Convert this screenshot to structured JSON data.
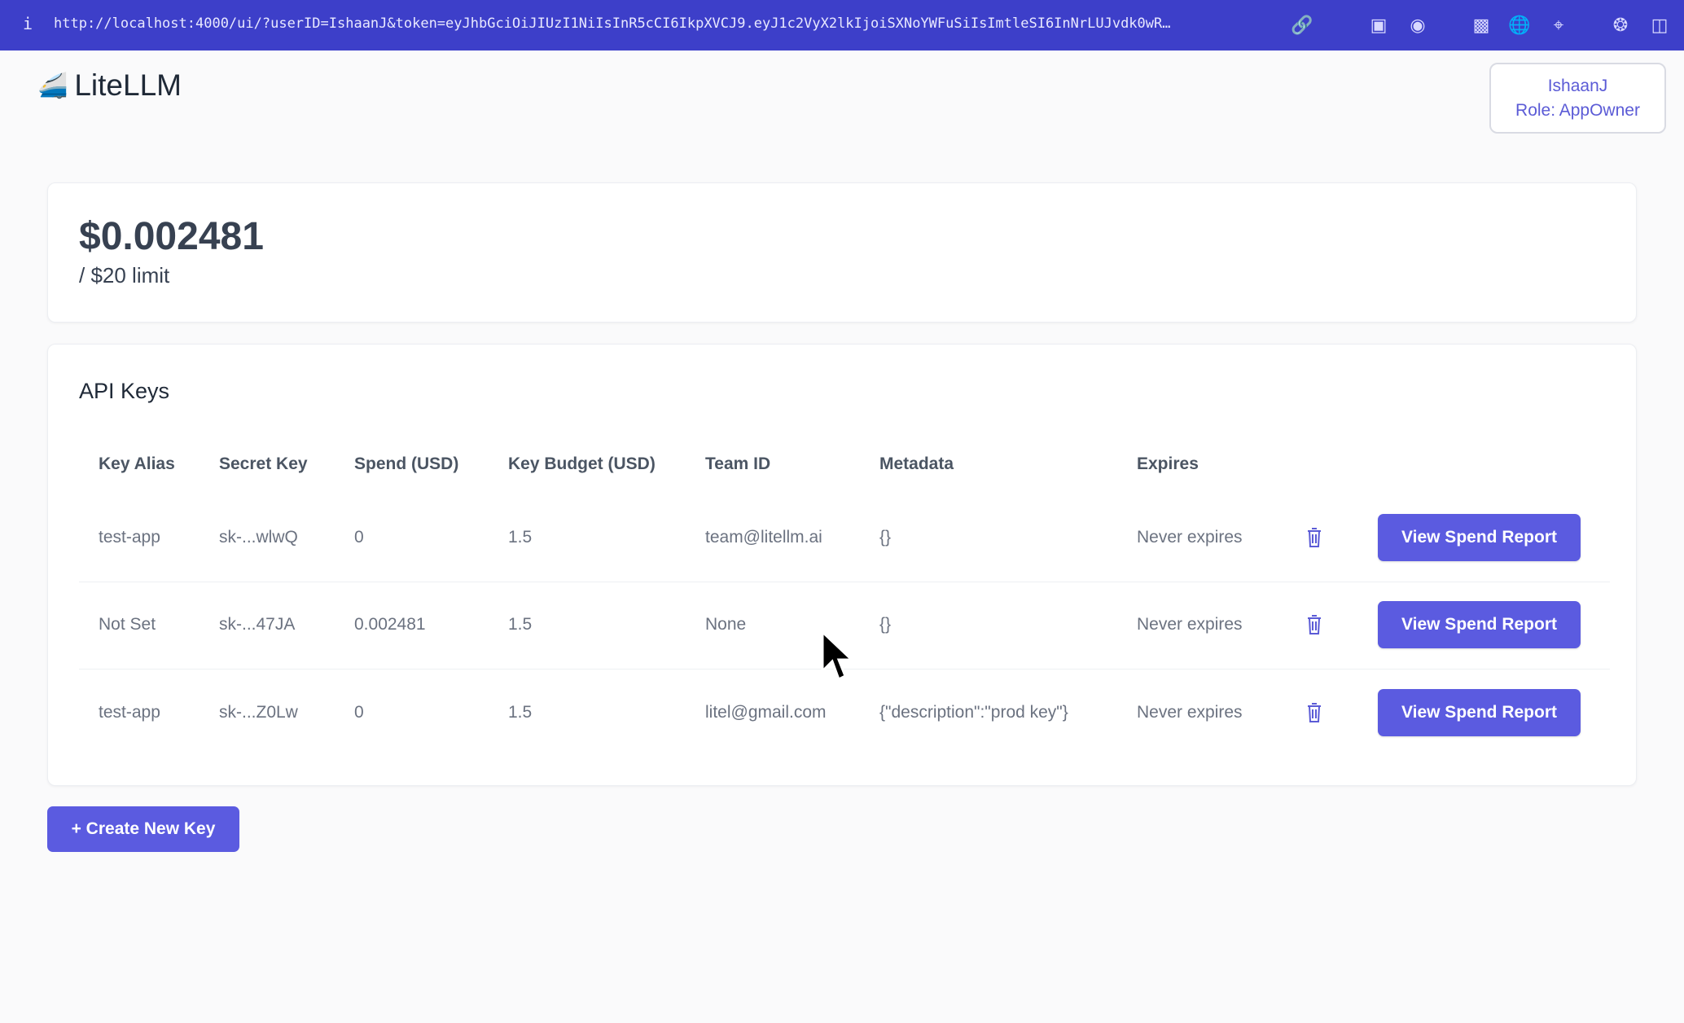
{
  "browser": {
    "info_icon": "i",
    "url": "http://localhost:4000/ui/?userID=IshaanJ&token=eyJhbGciOiJIUzI1NiIsInR5cCI6IkpXVCJ9.eyJ1c2VyX2lkIjoiSXNoYWFuSiIsImtleSI6InNrLUJvdk0wR…",
    "icons": [
      "link-icon",
      "download-icon",
      "camera-icon",
      "terminal-icon",
      "globe-icon",
      "crosshair-icon",
      "extension-icon",
      "sidebar-icon"
    ]
  },
  "header": {
    "logo_text": "LiteLLM",
    "user": {
      "name": "IshaanJ",
      "role": "Role: AppOwner"
    }
  },
  "spend": {
    "amount": "$0.002481",
    "limit": "/ $20 limit"
  },
  "api_keys": {
    "title": "API Keys",
    "columns": [
      "Key Alias",
      "Secret Key",
      "Spend (USD)",
      "Key Budget (USD)",
      "Team ID",
      "Metadata",
      "Expires"
    ],
    "rows": [
      {
        "alias": "test-app",
        "secret": "sk-...wlwQ",
        "spend": "0",
        "budget": "1.5",
        "team": "team@litellm.ai",
        "metadata": "{}",
        "expires": "Never expires",
        "action": "View Spend Report"
      },
      {
        "alias": "Not Set",
        "secret": "sk-...47JA",
        "spend": "0.002481",
        "budget": "1.5",
        "team": "None",
        "metadata": "{}",
        "expires": "Never expires",
        "action": "View Spend Report"
      },
      {
        "alias": "test-app",
        "secret": "sk-...Z0Lw",
        "spend": "0",
        "budget": "1.5",
        "team": "litel@gmail.com",
        "metadata": "{\"description\":\"prod key\"}",
        "expires": "Never expires",
        "action": "View Spend Report"
      }
    ]
  },
  "create_button": "+ Create New Key",
  "colors": {
    "accent": "#5b5be0",
    "topbar": "#3d3fc9"
  }
}
